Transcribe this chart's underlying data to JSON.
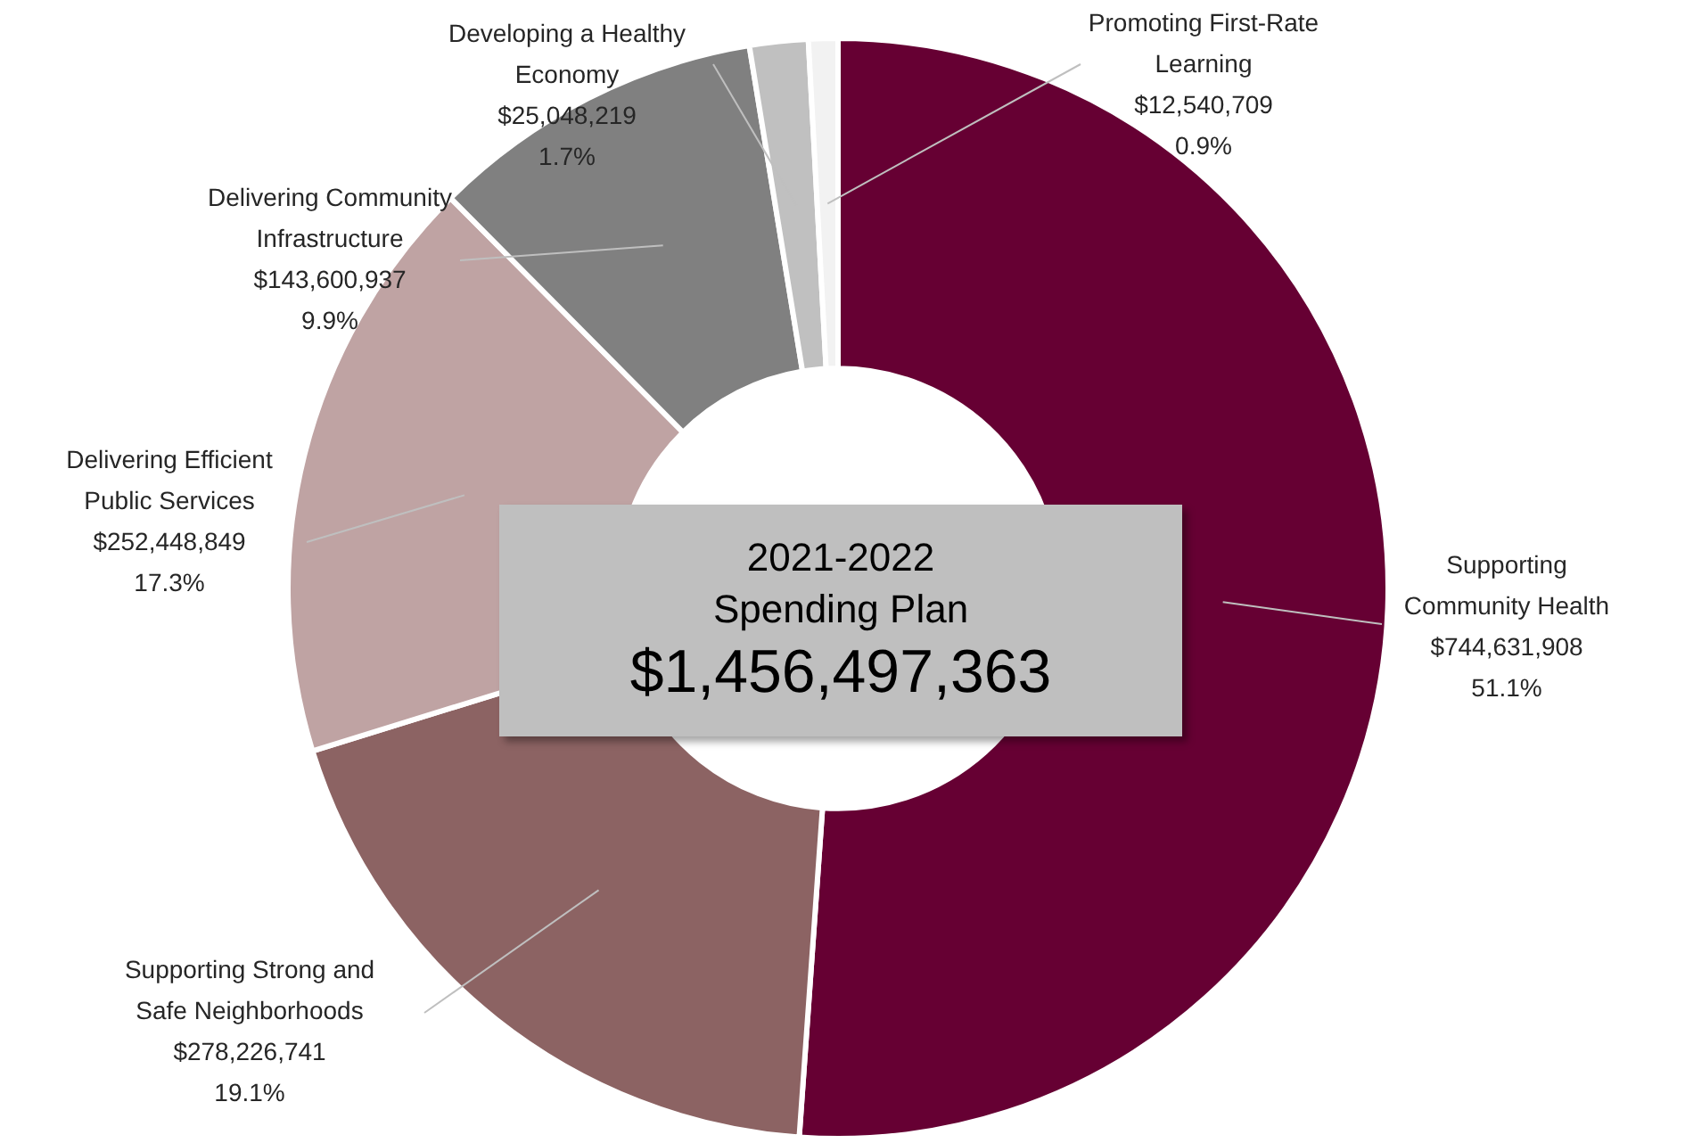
{
  "chart_data": {
    "type": "donut",
    "title": "2021-2022 Spending Plan",
    "annotations": [
      "$1,456,497,363"
    ],
    "categories": [
      "Supporting Community Health",
      "Supporting Strong and Safe Neighborhoods",
      "Delivering Efficient Public Services",
      "Delivering Community Infrastructure",
      "Developing a Healthy Economy",
      "Promoting First-Rate Learning"
    ],
    "values": [
      744631908,
      278226741,
      252448849,
      143600937,
      25048219,
      12540709
    ],
    "colors": [
      "#660033",
      "#8c6363",
      "#bfa3a3",
      "#808080",
      "#c0c0c0",
      "#f2f2f2"
    ],
    "value_labels": [
      "$744,631,908\n51.1%",
      "$278,226,741\n19.1%",
      "$252,448,849\n17.3%",
      "$143,600,937\n9.9%",
      "$25,048,219\n1.7%",
      "$12,540,709\n0.9%"
    ],
    "legend": false
  }
}
